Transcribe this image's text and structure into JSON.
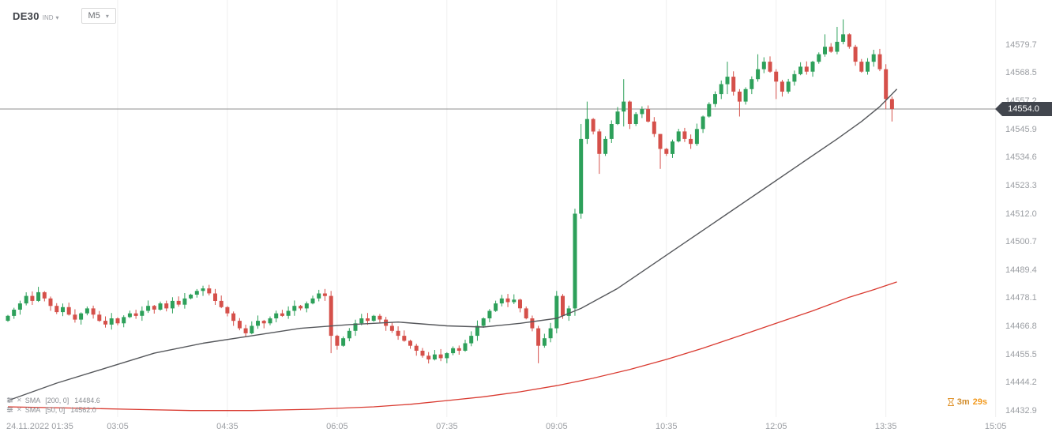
{
  "header": {
    "symbol": "DE30",
    "instrument_type": "IND",
    "timeframe": "M5"
  },
  "price_axis": {
    "labels": [
      "14579.7",
      "14568.5",
      "14557.2",
      "14545.9",
      "14534.6",
      "14523.3",
      "14512.0",
      "14500.7",
      "14489.4",
      "14478.1",
      "14466.8",
      "14455.5",
      "14444.2",
      "14432.9"
    ],
    "current_price": "14554.0"
  },
  "time_axis": {
    "ticks": [
      {
        "label": "24.11.2022 01:35",
        "index": 0
      },
      {
        "label": "03:05",
        "index": 18
      },
      {
        "label": "04:35",
        "index": 36
      },
      {
        "label": "06:05",
        "index": 54
      },
      {
        "label": "07:35",
        "index": 72
      },
      {
        "label": "09:05",
        "index": 90
      },
      {
        "label": "10:35",
        "index": 108
      },
      {
        "label": "12:05",
        "index": 126
      },
      {
        "label": "13:35",
        "index": 144
      },
      {
        "label": "15:05",
        "index": 162
      }
    ]
  },
  "indicators": [
    {
      "name": "SMA",
      "params": "[200, 0]",
      "value": "14484.6"
    },
    {
      "name": "SMA",
      "params": "[50, 0]",
      "value": "14562.0"
    }
  ],
  "countdown": {
    "minutes": "3m",
    "seconds": "29s"
  },
  "colors": {
    "up": "#2da05a",
    "down": "#d5504a",
    "sma_fast": "#55575b",
    "sma_slow": "#d93a30",
    "price_line": "#8f8f8f",
    "tag_bg": "#42464e",
    "grid": "#efefef",
    "axis_text": "#9b9ea3",
    "countdown_min": "#d18c2b",
    "countdown_sec": "#f29a1f"
  },
  "chart_data": {
    "type": "candlestick",
    "symbol": "DE30",
    "interval": "M5",
    "start_time": "24.11.2022 01:35",
    "time_step_minutes": 5,
    "current_price": 14554.0,
    "y_axis": {
      "top": 14579.7,
      "bottom": 14432.9,
      "tick_step": 11.3
    },
    "first_open": 14469,
    "closes": [
      14471,
      14473.5,
      14476,
      14479,
      14477,
      14480.5,
      14478,
      14475,
      14472.5,
      14474.5,
      14471.5,
      14469.5,
      14472,
      14474,
      14471.5,
      14469,
      14467.5,
      14470,
      14468,
      14470.5,
      14472,
      14471,
      14473,
      14475,
      14473.5,
      14476,
      14474,
      14477,
      14475.5,
      14478,
      14479.5,
      14481,
      14482,
      14480,
      14477,
      14474.5,
      14472,
      14469,
      14466,
      14464,
      14467,
      14469,
      14468,
      14470,
      14472,
      14471,
      14473,
      14475,
      14474,
      14476,
      14478,
      14480,
      14479,
      14463,
      14459,
      14462,
      14465,
      14468,
      14470,
      14469,
      14471,
      14469.5,
      14467,
      14465,
      14463,
      14461,
      14459,
      14457,
      14455,
      14453.5,
      14455.5,
      14454,
      14456,
      14458,
      14457,
      14460,
      14463,
      14467,
      14470,
      14473,
      14476,
      14478,
      14476.5,
      14477.5,
      14474,
      14470,
      14466,
      14459,
      14462,
      14466,
      14479,
      14471,
      14474,
      14512,
      14542,
      14550,
      14545,
      14536,
      14542,
      14548,
      14553,
      14557,
      14548,
      14552,
      14554,
      14549,
      14544,
      14538,
      14536,
      14541,
      14545,
      14542,
      14540,
      14546,
      14551,
      14556,
      14560,
      14564,
      14567,
      14561,
      14557,
      14562,
      14566,
      14570,
      14573,
      14569,
      14565,
      14561,
      14565,
      14568,
      14571,
      14569,
      14573,
      14576,
      14579,
      14577,
      14581,
      14584,
      14579,
      14573,
      14569,
      14573,
      14576,
      14570,
      14558,
      14554
    ],
    "wick_overrides": {
      "53": [
        14481,
        14456
      ],
      "87": [
        14467,
        14452
      ],
      "90": [
        14481,
        14464
      ],
      "93": [
        14514,
        14471
      ],
      "94": [
        14548,
        14510
      ],
      "95": [
        14557,
        14540
      ],
      "97": [
        14546,
        14528
      ],
      "101": [
        14566,
        14547
      ],
      "107": [
        14544,
        14530
      ],
      "118": [
        14573,
        14560
      ],
      "120": [
        14562,
        14551
      ],
      "123": [
        14576,
        14565
      ],
      "126": [
        14570,
        14558
      ],
      "134": [
        14584,
        14575
      ],
      "136": [
        14587,
        14576
      ],
      "137": [
        14590,
        14580
      ],
      "144": [
        14572,
        14554
      ],
      "145": [
        14559,
        14549
      ]
    },
    "sma50_points": [
      [
        0,
        14437
      ],
      [
        8,
        14444
      ],
      [
        16,
        14450
      ],
      [
        24,
        14456
      ],
      [
        32,
        14460
      ],
      [
        40,
        14463
      ],
      [
        48,
        14466
      ],
      [
        56,
        14467.5
      ],
      [
        64,
        14468.5
      ],
      [
        72,
        14467
      ],
      [
        78,
        14466.5
      ],
      [
        84,
        14468
      ],
      [
        90,
        14470
      ],
      [
        94,
        14474
      ],
      [
        100,
        14482
      ],
      [
        106,
        14492
      ],
      [
        112,
        14502
      ],
      [
        118,
        14512
      ],
      [
        124,
        14522
      ],
      [
        130,
        14532
      ],
      [
        136,
        14542
      ],
      [
        140,
        14549
      ],
      [
        143,
        14555
      ],
      [
        145,
        14560
      ],
      [
        145.8,
        14562
      ]
    ],
    "sma200_points": [
      [
        0,
        14434.5
      ],
      [
        10,
        14434
      ],
      [
        20,
        14433.5
      ],
      [
        30,
        14433
      ],
      [
        40,
        14433
      ],
      [
        50,
        14433.5
      ],
      [
        60,
        14434.5
      ],
      [
        66,
        14435.5
      ],
      [
        72,
        14437
      ],
      [
        78,
        14438.5
      ],
      [
        84,
        14440.5
      ],
      [
        90,
        14443
      ],
      [
        96,
        14446
      ],
      [
        102,
        14449.5
      ],
      [
        108,
        14453.5
      ],
      [
        114,
        14458
      ],
      [
        120,
        14463
      ],
      [
        126,
        14468
      ],
      [
        132,
        14473
      ],
      [
        138,
        14478.5
      ],
      [
        142,
        14481.5
      ],
      [
        145.8,
        14484.6
      ]
    ]
  }
}
